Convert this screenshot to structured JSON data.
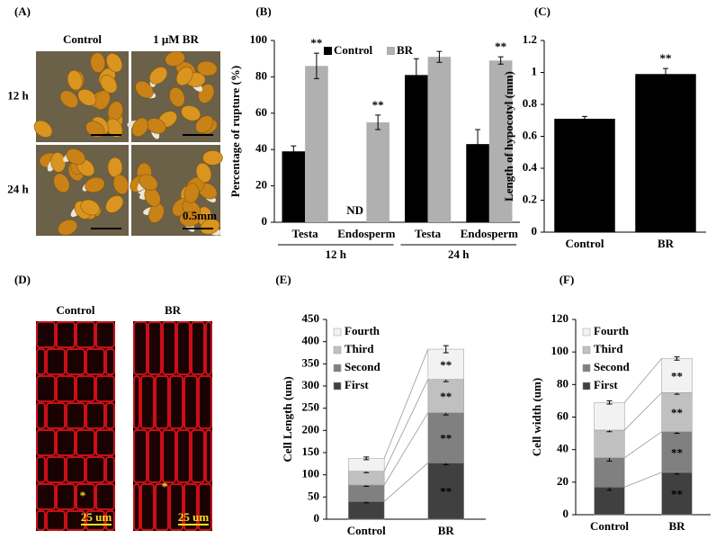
{
  "figure": {
    "panel_labels": [
      "(A)",
      "(B)",
      "(C)",
      "(D)",
      "(E)",
      "(F)"
    ],
    "photo_a": {
      "columns": [
        "Control",
        "1 μM BR"
      ],
      "rows": [
        "12 h",
        "24 h"
      ],
      "scale": "0.5mm"
    },
    "photo_d": {
      "columns": [
        "Control",
        "BR"
      ],
      "markers": [
        "*",
        "*"
      ],
      "scales": [
        "25 um",
        "25 um"
      ]
    }
  },
  "chart_data": [
    {
      "type": "bar",
      "ylabel": "Percentage of rupture (%)",
      "categories": [
        "Testa",
        "Endosperm",
        "Testa",
        "Endosperm"
      ],
      "groups": [
        "12 h",
        "24 h"
      ],
      "series": [
        {
          "name": "Control",
          "color": "#000000",
          "values": [
            39,
            null,
            81,
            43
          ],
          "errors": [
            3,
            null,
            9,
            8
          ],
          "marks": [
            null,
            "ND",
            null,
            null
          ]
        },
        {
          "name": "BR",
          "color": "#b0b0b0",
          "values": [
            86,
            55,
            91,
            89
          ],
          "errors": [
            7,
            4,
            3,
            2
          ],
          "marks": [
            "**",
            "**",
            null,
            "**"
          ]
        }
      ],
      "ylim": [
        0,
        100
      ],
      "yticks": [
        0,
        20,
        40,
        60,
        80,
        100
      ],
      "legend": "top"
    },
    {
      "type": "bar",
      "ylabel": "Length of hypocotyl (mm)",
      "categories": [
        "Control",
        "BR"
      ],
      "values": [
        0.71,
        0.99
      ],
      "errors": [
        0.015,
        0.035
      ],
      "marks": [
        null,
        "**"
      ],
      "color": "#000000",
      "ylim": [
        0,
        1.2
      ],
      "yticks": [
        0,
        0.2,
        0.4,
        0.6,
        0.8,
        1,
        1.2
      ]
    },
    {
      "type": "stacked_bar",
      "ylabel": "Cell Length (um)",
      "categories": [
        "Control",
        "BR"
      ],
      "series": [
        {
          "name": "First",
          "color": "#404040",
          "values": [
            40,
            127
          ],
          "errors": [
            3,
            4
          ],
          "marks": [
            null,
            "**"
          ]
        },
        {
          "name": "Second",
          "color": "#808080",
          "values": [
            37,
            113
          ],
          "errors": [
            3,
            5
          ],
          "marks": [
            null,
            "**"
          ]
        },
        {
          "name": "Third",
          "color": "#c0c0c0",
          "values": [
            31,
            75
          ],
          "errors": [
            3,
            5
          ],
          "marks": [
            null,
            "**"
          ]
        },
        {
          "name": "Fourth",
          "color": "#f2f2f2",
          "values": [
            29,
            68
          ],
          "errors": [
            3,
            8
          ],
          "marks": [
            null,
            "**"
          ]
        }
      ],
      "ylim": [
        0,
        450
      ],
      "yticks": [
        0,
        50,
        100,
        150,
        200,
        250,
        300,
        350,
        400,
        450
      ],
      "legend": "upper left"
    },
    {
      "type": "stacked_bar",
      "ylabel": "Cell width (um)",
      "categories": [
        "Control",
        "BR"
      ],
      "series": [
        {
          "name": "First",
          "color": "#404040",
          "values": [
            17,
            26
          ],
          "errors": [
            2,
            1
          ],
          "marks": [
            null,
            "**"
          ]
        },
        {
          "name": "Second",
          "color": "#808080",
          "values": [
            18,
            25
          ],
          "errors": [
            2,
            1
          ],
          "marks": [
            null,
            "**"
          ]
        },
        {
          "name": "Third",
          "color": "#c0c0c0",
          "values": [
            17,
            24
          ],
          "errors": [
            1,
            1
          ],
          "marks": [
            null,
            "**"
          ]
        },
        {
          "name": "Fourth",
          "color": "#f2f2f2",
          "values": [
            17,
            21
          ],
          "errors": [
            1,
            1
          ],
          "marks": [
            null,
            "**"
          ]
        }
      ],
      "ylim": [
        0,
        120
      ],
      "yticks": [
        0,
        20,
        40,
        60,
        80,
        100,
        120
      ],
      "legend": "upper left"
    }
  ]
}
